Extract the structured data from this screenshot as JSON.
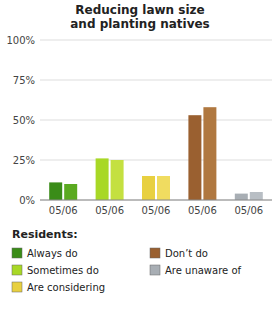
{
  "chart_data": {
    "type": "bar",
    "title": "Reducing lawn size\nand planting natives",
    "categories": [
      "05/06",
      "05/06",
      "05/06",
      "05/06",
      "05/06"
    ],
    "series": [
      {
        "values": [
          11,
          26,
          15,
          53,
          4
        ],
        "colors": [
          "#3a8c18",
          "#a8d826",
          "#e8d040",
          "#9a6030",
          "#a8aeb4"
        ]
      },
      {
        "values": [
          10,
          25,
          15,
          58,
          5
        ],
        "colors": [
          "#5aaa20",
          "#c4e040",
          "#f0dc60",
          "#b07840",
          "#b8bec4"
        ]
      }
    ],
    "ylim": [
      0,
      100
    ],
    "yticks": [
      {
        "value": 0,
        "label": "0%"
      },
      {
        "value": 25,
        "label": "25%"
      },
      {
        "value": 50,
        "label": "50%"
      },
      {
        "value": 75,
        "label": "75%"
      },
      {
        "value": 100,
        "label": "100%"
      }
    ],
    "grid": true,
    "legend_title": "Residents:",
    "legend_items": [
      {
        "label": "Always do",
        "color": "#3a8c18"
      },
      {
        "label": "Sometimes do",
        "color": "#a8d826"
      },
      {
        "label": "Are considering",
        "color": "#e8d040"
      },
      {
        "label": "Don’t do",
        "color": "#9a6030"
      },
      {
        "label": "Are unaware of",
        "color": "#a8aeb4"
      }
    ]
  }
}
